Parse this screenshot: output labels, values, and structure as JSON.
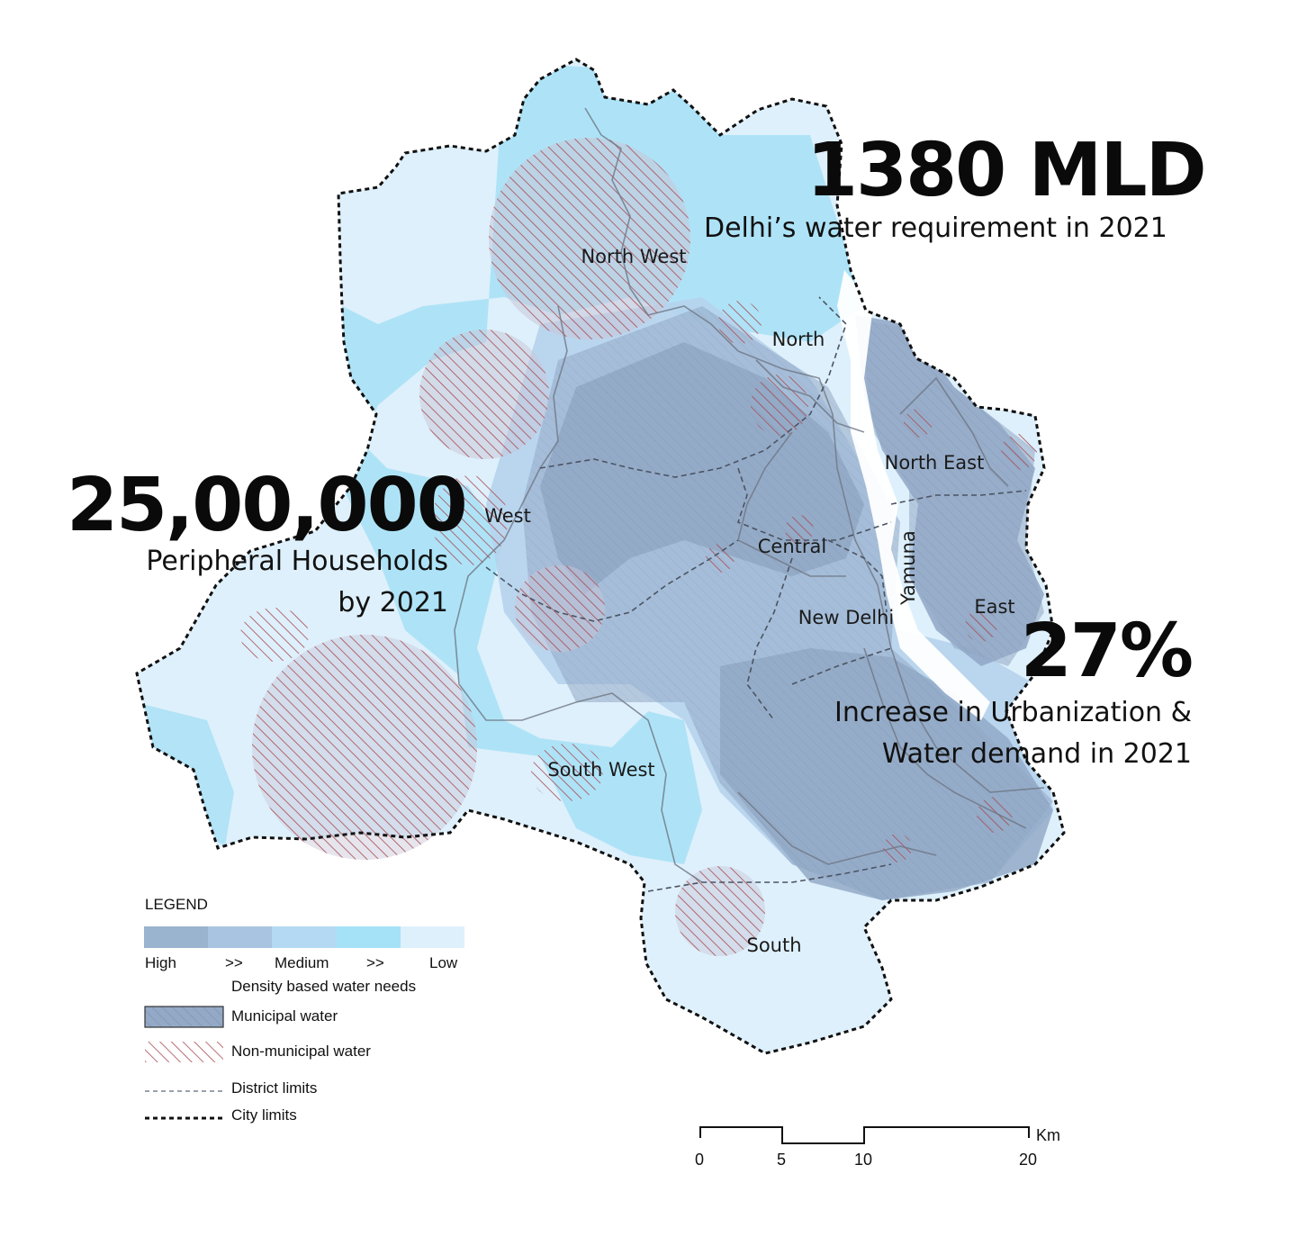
{
  "headline_demand": {
    "value": "1380 MLD",
    "caption": "Delhi’s water requirement in 2021"
  },
  "headline_households": {
    "value": "25,00,000",
    "caption_line1": "Peripheral Households",
    "caption_line2": "by 2021"
  },
  "headline_urbanization": {
    "value": "27%",
    "caption_line1": "Increase in Urbanization &",
    "caption_line2": "Water demand in 2021"
  },
  "districts": {
    "north_west": "North West",
    "north": "North",
    "north_east": "North East",
    "west": "West",
    "central": "Central",
    "east": "East",
    "new_delhi": "New Delhi",
    "south_west": "South West",
    "south": "South"
  },
  "river_label": "Yamuna",
  "legend": {
    "title": "LEGEND",
    "ramp_colors": [
      "#9ab3cf",
      "#a9c4e0",
      "#b4d9f2",
      "#a6e2f7",
      "#def0fb"
    ],
    "ramp_labels": {
      "high": "High",
      "arrow1": ">>",
      "medium": "Medium",
      "arrow2": ">>",
      "low": "Low"
    },
    "density_caption": "Density based water needs",
    "municipal": "Municipal water",
    "non_municipal": "Non-municipal water",
    "district_limits": "District limits",
    "city_limits": "City limits"
  },
  "scale_bar": {
    "ticks": [
      "0",
      "5",
      "10",
      "20"
    ],
    "unit": "Km"
  },
  "colors": {
    "municipal_fill": "#8fa6c4",
    "non_municipal_hatch": "#a84b52",
    "city_limit_line": "#111111",
    "district_limit_line": "#7a8290"
  }
}
